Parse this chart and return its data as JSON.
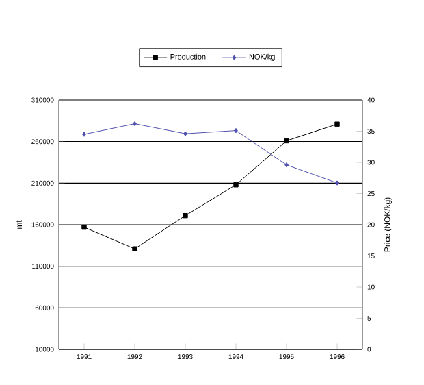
{
  "chart_data": {
    "type": "line",
    "categories": [
      "1991",
      "1992",
      "1993",
      "1994",
      "1995",
      "1996"
    ],
    "series": [
      {
        "name": "Production",
        "color": "#000000",
        "marker": "square",
        "values": [
          157000,
          131000,
          171000,
          208000,
          261000,
          281000
        ]
      },
      {
        "name": "NOK/kg",
        "color": "#5050b0",
        "marker": "diamond",
        "axis": "y2",
        "values": [
          34.5,
          36.2,
          34.6,
          35.1,
          29.6,
          26.7
        ]
      }
    ],
    "ylabel": "mt",
    "y2label": "Price (NOK/kg)",
    "ylim": [
      10000,
      310000
    ],
    "yticks": [
      10000,
      60000,
      110000,
      160000,
      210000,
      260000,
      310000
    ],
    "y2lim": [
      0,
      40
    ],
    "y2ticks": [
      0,
      5,
      10,
      15,
      20,
      25,
      30,
      35,
      40
    ],
    "grid": "y",
    "legend": "top",
    "line_style": "solid"
  }
}
